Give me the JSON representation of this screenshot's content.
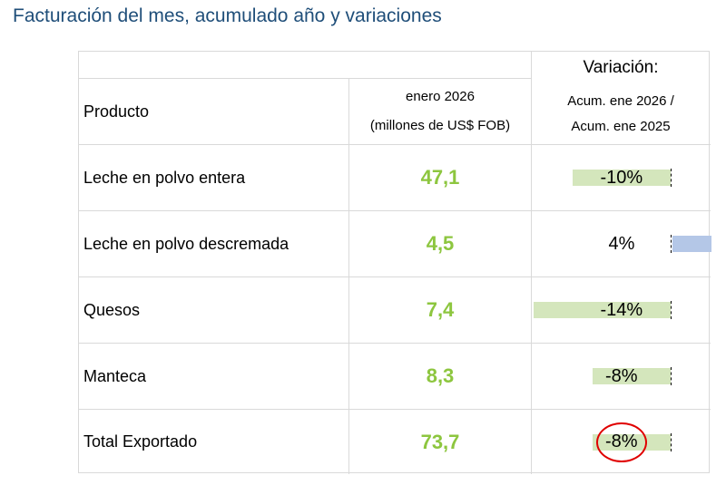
{
  "page": {
    "title": "Facturación del mes, acumulado año y variaciones"
  },
  "table": {
    "headers": {
      "producto": "Producto",
      "mes_line1": "enero 2026",
      "mes_line2": "(millones de US$ FOB)",
      "variacion_title": "Variación:",
      "variacion_line1": "Acum. ene 2026 /",
      "variacion_line2": "Acum. ene 2025"
    },
    "rows": [
      {
        "label": "Leche en polvo entera",
        "value": "47,1",
        "variation_text": "-10%",
        "variation": -10
      },
      {
        "label": "Leche en polvo descremada",
        "value": "4,5",
        "variation_text": "4%",
        "variation": 4
      },
      {
        "label": "Quesos",
        "value": "7,4",
        "variation_text": "-14%",
        "variation": -14
      },
      {
        "label": "Manteca",
        "value": "8,3",
        "variation_text": "-8%",
        "variation": -8
      },
      {
        "label": "Total Exportado",
        "value": "73,7",
        "variation_text": "-8%",
        "variation": -8,
        "highlighted": true
      }
    ]
  },
  "colors": {
    "title": "#1f4e79",
    "value_text": "#8dc63f",
    "negative_bar": "#d4e6bc",
    "positive_bar": "#b4c7e7",
    "highlight_circle": "#e00000",
    "grid": "#d9d9d9"
  }
}
